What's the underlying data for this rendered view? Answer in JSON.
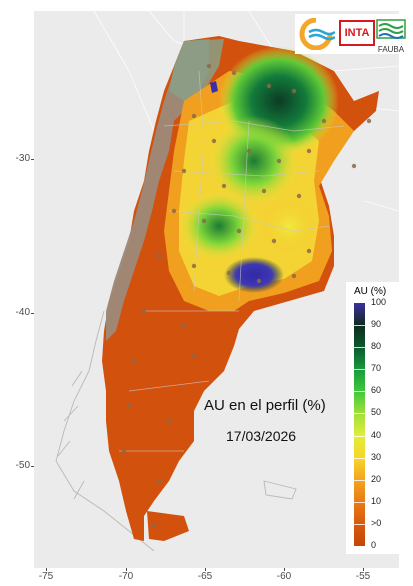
{
  "map": {
    "title": "AU en el perfil (%)",
    "date": "17/03/2026",
    "background_color": "#ebebeb",
    "y_axis_ticks": [
      "-30",
      "-40",
      "-50"
    ],
    "x_axis_ticks": [
      "-75",
      "-70",
      "-65",
      "-60",
      "-55"
    ]
  },
  "logos": {
    "inta_text": "INTA",
    "fauba_text": "FAUBA",
    "inta_color": "#d71920",
    "fauba_color": "#2ea043"
  },
  "legend": {
    "title": "AU (%)",
    "labels": [
      "100",
      "90",
      "80",
      "70",
      "60",
      "50",
      "40",
      "30",
      "20",
      "10",
      ">0",
      "0"
    ],
    "colors": [
      "#3d2fa0",
      "#0f2a1e",
      "#0b5a2e",
      "#179a3c",
      "#3fc93a",
      "#9fe03a",
      "#dfee3a",
      "#f7d52a",
      "#f3a51f",
      "#ea7b16",
      "#d85a0c",
      "#c4460a"
    ]
  }
}
